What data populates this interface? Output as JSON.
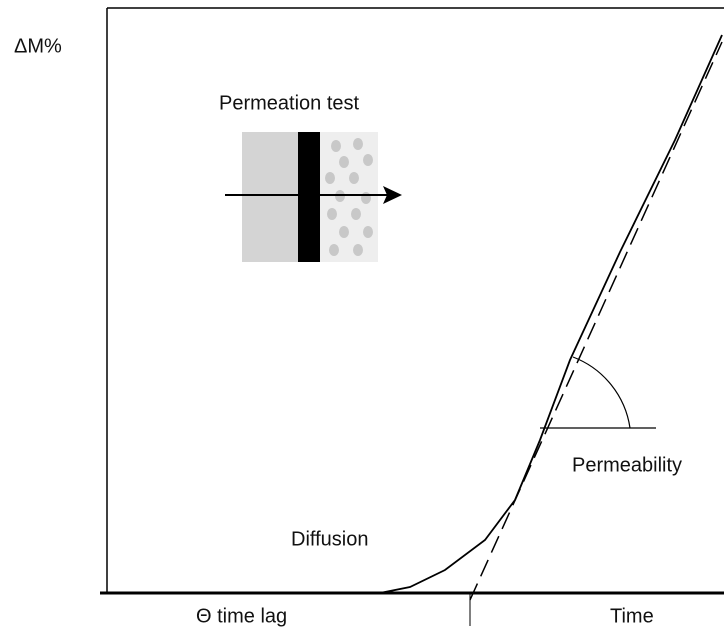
{
  "y_axis_label": "ΔM%",
  "inset": {
    "title": "Permeation test"
  },
  "labels": {
    "slope": "Permeability",
    "curve": "Diffusion",
    "time_lag": "Θ time lag",
    "x_axis": "Time"
  }
}
